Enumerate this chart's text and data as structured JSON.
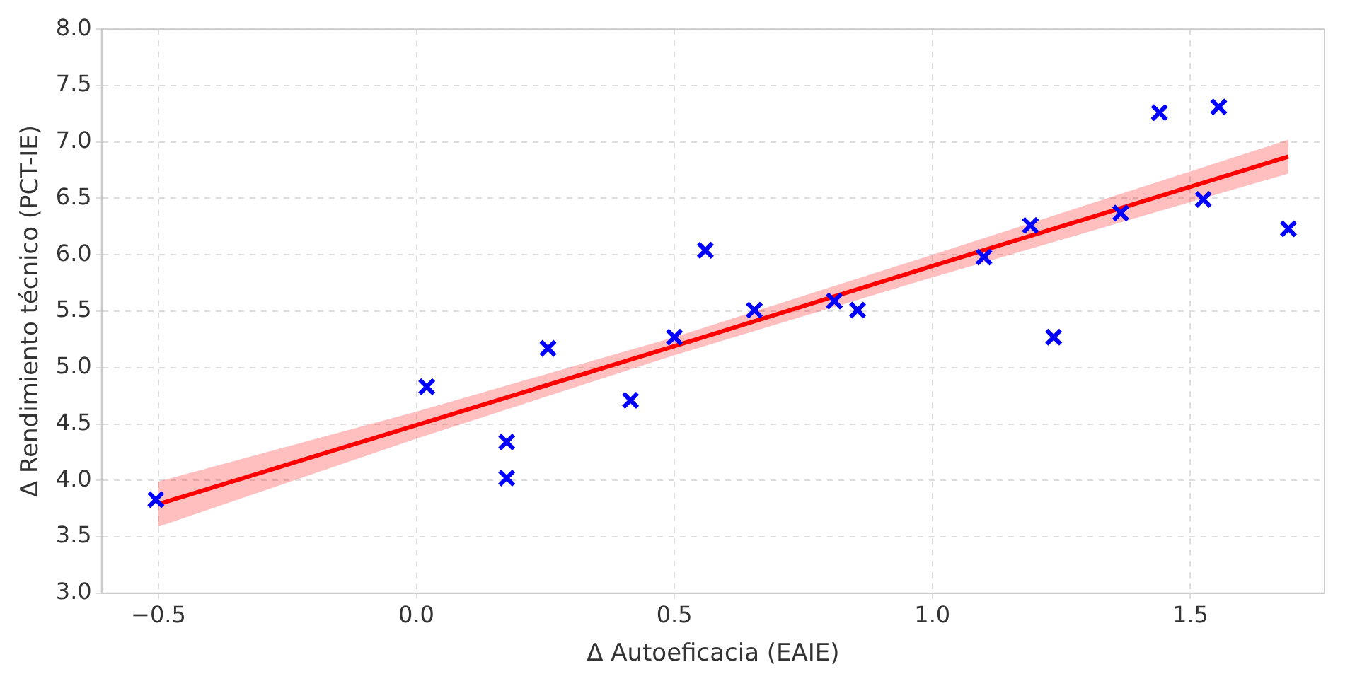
{
  "chart_data": {
    "type": "scatter",
    "xlabel": "Δ Autoeficacia (EAIE)",
    "ylabel": "Δ Rendimiento técnico (PCT-IE)",
    "series": [
      {
        "color": "#0000ff",
        "marker": "cross",
        "x": [
          -0.505,
          0.02,
          0.175,
          0.175,
          0.255,
          0.415,
          0.5,
          0.56,
          0.655,
          0.81,
          0.855,
          1.1,
          1.19,
          1.235,
          1.365,
          1.44,
          1.525,
          1.555,
          1.69
        ],
        "values": [
          3.83,
          4.83,
          4.34,
          4.02,
          5.17,
          4.71,
          5.27,
          6.04,
          5.51,
          5.59,
          5.51,
          5.98,
          6.26,
          5.27,
          6.37,
          7.26,
          6.49,
          7.31,
          6.23
        ]
      },
      {
        "type": "line",
        "color": "#ff0000",
        "marker": "none",
        "line_style": "solid",
        "x": [
          -0.5,
          0,
          0.5,
          1.0,
          1.69
        ],
        "values": [
          3.79,
          4.49,
          5.19,
          5.9,
          6.87
        ],
        "lower": [
          3.59,
          4.37,
          5.11,
          5.8,
          6.72
        ],
        "upper": [
          3.99,
          4.61,
          5.27,
          6.0,
          7.02
        ]
      }
    ],
    "xlim": [
      -0.61,
      1.76
    ],
    "ylim": [
      3,
      8
    ],
    "xticks": [
      {
        "value": -0.5,
        "label": "−0.5"
      },
      {
        "value": 0,
        "label": "0.0"
      },
      {
        "value": 0.5,
        "label": "0.5"
      },
      {
        "value": 1,
        "label": "1.0"
      },
      {
        "value": 1.5,
        "label": "1.5"
      }
    ],
    "yticks": [
      {
        "value": 3,
        "label": "3.0"
      },
      {
        "value": 3.5,
        "label": "3.5"
      },
      {
        "value": 4,
        "label": "4.0"
      },
      {
        "value": 4.5,
        "label": "4.5"
      },
      {
        "value": 5,
        "label": "5.0"
      },
      {
        "value": 5.5,
        "label": "5.5"
      },
      {
        "value": 6,
        "label": "6.0"
      },
      {
        "value": 6.5,
        "label": "6.5"
      },
      {
        "value": 7,
        "label": "7.0"
      },
      {
        "value": 7.5,
        "label": "7.5"
      },
      {
        "value": 8,
        "label": "8.0"
      }
    ],
    "grid": true,
    "legend": false
  }
}
